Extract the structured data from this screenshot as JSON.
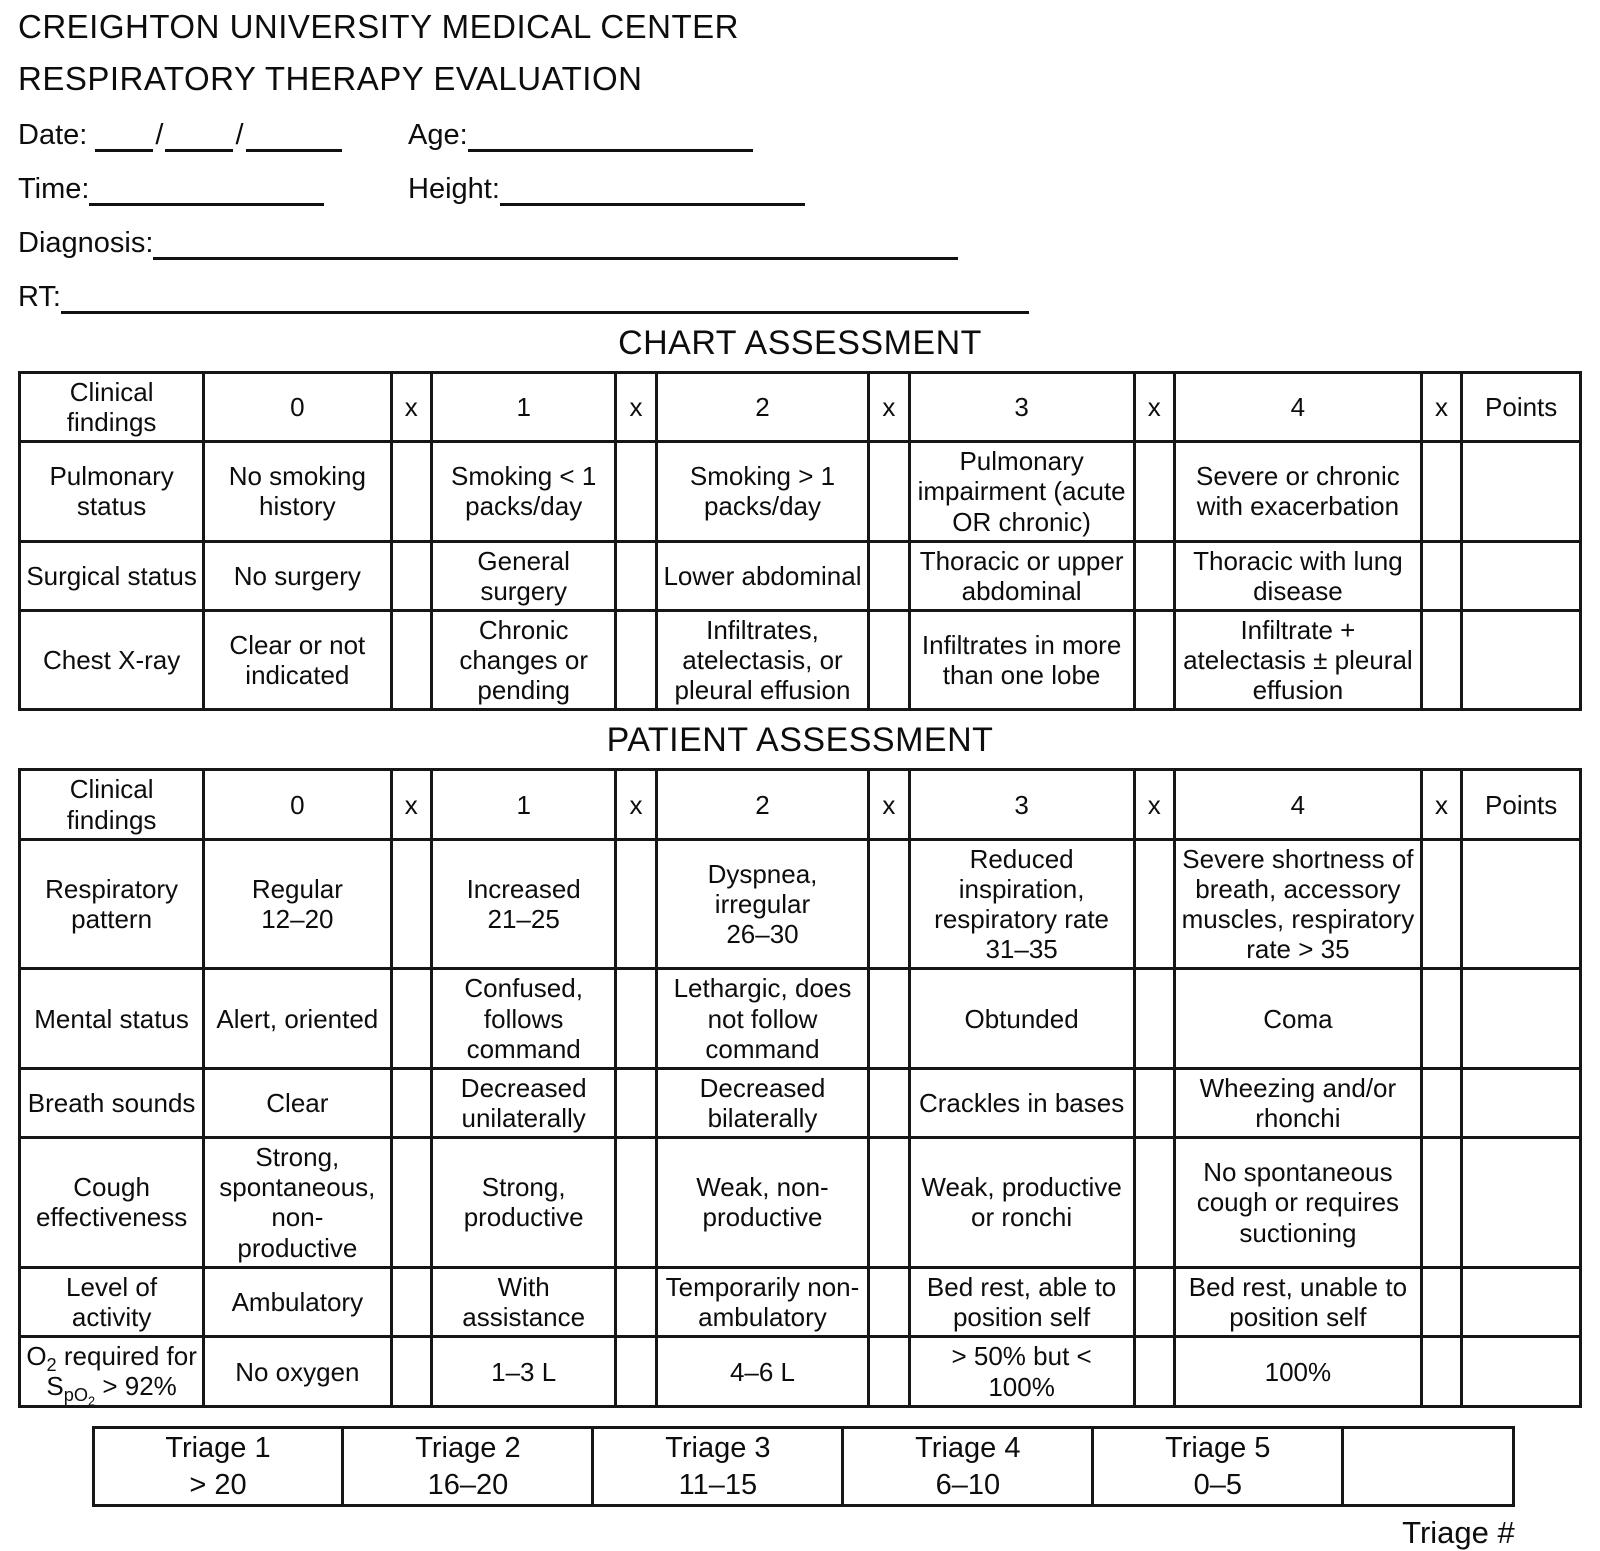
{
  "page": {
    "org_name": "CREIGHTON UNIVERSITY MEDICAL CENTER",
    "form_title": "RESPIRATORY THERAPY EVALUATION"
  },
  "fields": {
    "date_label": "Date:",
    "date_separator": "/",
    "age_label": "Age:",
    "time_label": "Time:",
    "height_label": "Height:",
    "diagnosis_label": "Diagnosis:",
    "rt_label": "RT:"
  },
  "chart_assessment": {
    "heading": "CHART ASSESSMENT",
    "columns": [
      "Clinical\nfindings",
      "0",
      "x",
      "1",
      "x",
      "2",
      "x",
      "3",
      "x",
      "4",
      "x",
      "Points"
    ],
    "rows": [
      {
        "label": "Pulmonary\nstatus",
        "scores": [
          "No smoking\nhistory",
          "Smoking < 1\npacks/day",
          "Smoking > 1\npacks/day",
          "Pulmonary\nimpairment (acute\nOR chronic)",
          "Severe or chronic\nwith exacerbation"
        ]
      },
      {
        "label": "Surgical status",
        "scores": [
          "No surgery",
          "General\nsurgery",
          "Lower abdominal",
          "Thoracic or upper\nabdominal",
          "Thoracic with lung\ndisease"
        ]
      },
      {
        "label": "Chest X-ray",
        "scores": [
          "Clear or not\nindicated",
          "Chronic\nchanges or\npending",
          "Infiltrates,\natelectasis, or\npleural effusion",
          "Infiltrates in more\nthan one lobe",
          "Infiltrate +\natelectasis ± pleural\neffusion"
        ]
      }
    ]
  },
  "patient_assessment": {
    "heading": "PATIENT ASSESSMENT",
    "columns": [
      "Clinical\nfindings",
      "0",
      "x",
      "1",
      "x",
      "2",
      "x",
      "3",
      "x",
      "4",
      "x",
      "Points"
    ],
    "rows": [
      {
        "label": "Respiratory\npattern",
        "scores": [
          "Regular\n12–20",
          "Increased\n21–25",
          "Dyspnea,\nirregular\n26–30",
          "Reduced\ninspiration,\nrespiratory rate\n31–35",
          "Severe shortness of\nbreath, accessory\nmuscles, respiratory\nrate > 35"
        ]
      },
      {
        "label": "Mental status",
        "scores": [
          "Alert, oriented",
          "Confused,\nfollows\ncommand",
          "Lethargic, does\nnot follow\ncommand",
          "Obtunded",
          "Coma"
        ]
      },
      {
        "label": "Breath sounds",
        "scores": [
          "Clear",
          "Decreased\nunilaterally",
          "Decreased\nbilaterally",
          "Crackles in bases",
          "Wheezing and/or\nrhonchi"
        ]
      },
      {
        "label": "Cough\neffectiveness",
        "scores": [
          "Strong,\nspontaneous,\nnon-\nproductive",
          "Strong,\nproductive",
          "Weak, non-\nproductive",
          "Weak, productive\nor ronchi",
          "No spontaneous\ncough or requires\nsuctioning"
        ]
      },
      {
        "label": "Level of activity",
        "scores": [
          "Ambulatory",
          "With\nassistance",
          "Temporarily non-\nambulatory",
          "Bed rest, able to\nposition self",
          "Bed rest, unable to\nposition self"
        ]
      },
      {
        "label_o2": {
          "o": "O",
          "o_sub": "2",
          "rest": " required for",
          "s": "S",
          "s_sub": "pO",
          "s_sub2": "2",
          "tail": " > 92%"
        },
        "scores": [
          "No oxygen",
          "1–3 L",
          "4–6 L",
          "> 50% but < 100%",
          "100%"
        ]
      }
    ]
  },
  "triage": {
    "cells": [
      {
        "name": "Triage 1",
        "range": "> 20"
      },
      {
        "name": "Triage 2",
        "range": "16–20"
      },
      {
        "name": "Triage 3",
        "range": "11–15"
      },
      {
        "name": "Triage 4",
        "range": "6–10"
      },
      {
        "name": "Triage 5",
        "range": "0–5"
      }
    ],
    "number_label": "Triage #"
  }
}
